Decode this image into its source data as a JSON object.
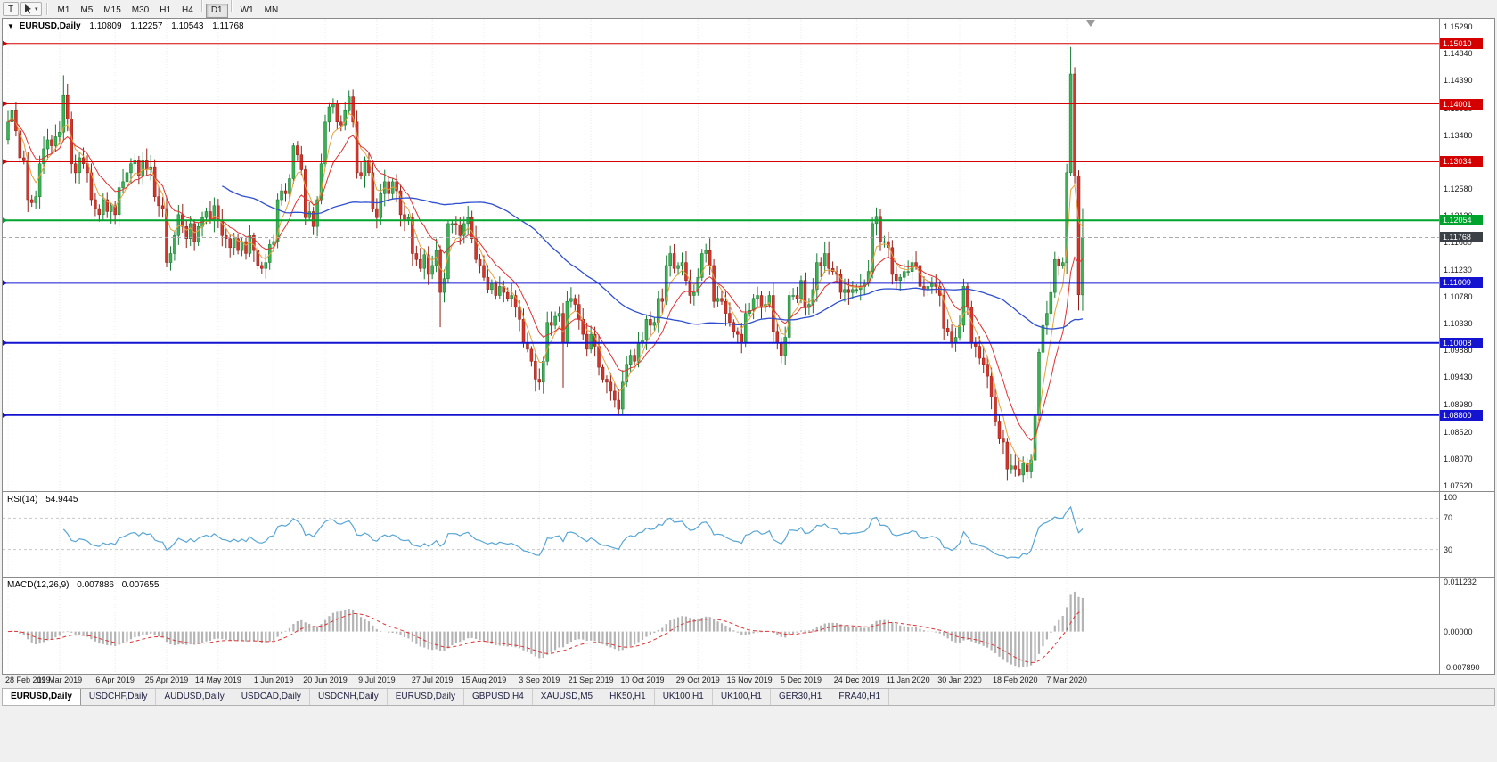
{
  "toolbar": {
    "template_button_label": "T",
    "timeframe_groups": [
      [
        "M1",
        "M5",
        "M15",
        "M30",
        "H1",
        "H4"
      ],
      [
        "D1"
      ],
      [
        "W1",
        "MN"
      ]
    ],
    "active_timeframe": "D1"
  },
  "chart_header": {
    "symbol": "EURUSD,Daily",
    "open": "1.10809",
    "high": "1.12257",
    "low": "1.10543",
    "close": "1.11768"
  },
  "indicators": {
    "rsi": {
      "name": "RSI(14)",
      "value": "54.9445",
      "line_color": "#58a6d6",
      "levels": [
        70,
        30
      ],
      "axis_ticks": [
        {
          "label": "100",
          "value": 100
        },
        {
          "label": "70",
          "value": 70
        },
        {
          "label": "30",
          "value": 30
        }
      ]
    },
    "macd": {
      "name": "MACD(12,26,9)",
      "main_value": "0.007886",
      "signal_value": "0.007655",
      "histogram_color": "#b4b4b4",
      "signal_color": "#dd3333",
      "range": [
        -0.00789,
        0.011232
      ],
      "axis_ticks": [
        {
          "label": "0.011232",
          "value": 0.011232
        },
        {
          "label": "0.00000",
          "value": 0
        },
        {
          "label": "-0.007890",
          "value": -0.00789
        }
      ]
    }
  },
  "tabs": {
    "items": [
      "EURUSD,Daily",
      "USDCHF,Daily",
      "AUDUSD,Daily",
      "USDCAD,Daily",
      "USDCNH,Daily",
      "EURUSD,Daily",
      "GBPUSD,H4",
      "XAUUSD,M5",
      "HK50,H1",
      "UK100,H1",
      "UK100,H1",
      "GER30,H1",
      "FRA40,H1"
    ],
    "active_index": 0
  },
  "chart_data": {
    "type": "candlestick",
    "symbol": "EURUSD",
    "timeframe": "Daily",
    "y_range": [
      1.0762,
      1.1529
    ],
    "price_ticks": [
      "1.15290",
      "1.14840",
      "1.14390",
      "1.13930",
      "1.13480",
      "1.13030",
      "1.12580",
      "1.12130",
      "1.11680",
      "1.11230",
      "1.10780",
      "1.10330",
      "1.09880",
      "1.09430",
      "1.08980",
      "1.08520",
      "1.08070",
      "1.07620"
    ],
    "time_labels": [
      "28 Feb 2019",
      "19 Mar 2019",
      "6 Apr 2019",
      "25 Apr 2019",
      "14 May 2019",
      "1 Jun 2019",
      "20 Jun 2019",
      "9 Jul 2019",
      "27 Jul 2019",
      "15 Aug 2019",
      "3 Sep 2019",
      "21 Sep 2019",
      "10 Oct 2019",
      "29 Oct 2019",
      "16 Nov 2019",
      "5 Dec 2019",
      "24 Dec 2019",
      "11 Jan 2020",
      "30 Jan 2020",
      "18 Feb 2020",
      "7 Mar 2020"
    ],
    "first_open": 1.134,
    "closes": [
      1.137,
      1.139,
      1.1355,
      1.131,
      1.1305,
      1.124,
      1.1235,
      1.1245,
      1.13,
      1.1325,
      1.134,
      1.133,
      1.1345,
      1.1353,
      1.1414,
      1.1375,
      1.13,
      1.1285,
      1.131,
      1.13,
      1.1285,
      1.124,
      1.1225,
      1.1215,
      1.124,
      1.122,
      1.123,
      1.1215,
      1.126,
      1.127,
      1.1285,
      1.13,
      1.1305,
      1.128,
      1.1305,
      1.129,
      1.1295,
      1.1245,
      1.123,
      1.1225,
      1.1135,
      1.115,
      1.118,
      1.1215,
      1.1195,
      1.1175,
      1.12,
      1.117,
      1.1195,
      1.121,
      1.122,
      1.1205,
      1.123,
      1.1205,
      1.118,
      1.1175,
      1.116,
      1.1175,
      1.1155,
      1.117,
      1.115,
      1.118,
      1.1155,
      1.113,
      1.1125,
      1.1135,
      1.1165,
      1.117,
      1.124,
      1.1255,
      1.125,
      1.1275,
      1.133,
      1.1315,
      1.129,
      1.121,
      1.122,
      1.1195,
      1.124,
      1.13,
      1.137,
      1.1395,
      1.14,
      1.137,
      1.1365,
      1.139,
      1.1412,
      1.137,
      1.1285,
      1.128,
      1.1305,
      1.1285,
      1.1225,
      1.121,
      1.125,
      1.127,
      1.125,
      1.127,
      1.1255,
      1.1215,
      1.1205,
      1.121,
      1.115,
      1.114,
      1.1125,
      1.1148,
      1.1115,
      1.113,
      1.1155,
      1.1085,
      1.1108,
      1.12,
      1.12,
      1.1198,
      1.118,
      1.12,
      1.121,
      1.1175,
      1.114,
      1.113,
      1.111,
      1.109,
      1.11,
      1.108,
      1.1095,
      1.1085,
      1.1075,
      1.108,
      1.106,
      1.104,
      1.1,
      1.099,
      1.097,
      1.094,
      1.0935,
      1.097,
      1.1035,
      1.103,
      1.1045,
      1.105,
      1.1,
      1.107,
      1.1075,
      1.1065,
      1.104,
      1.1015,
      1.099,
      1.1015,
      1.0995,
      1.096,
      1.094,
      1.0935,
      1.092,
      1.0905,
      1.089,
      1.0935,
      1.0965,
      1.098,
      1.097,
      1.1,
      1.1005,
      1.104,
      1.103,
      1.1035,
      1.1075,
      1.107,
      1.113,
      1.115,
      1.1125,
      1.113,
      1.1135,
      1.1105,
      1.108,
      1.1085,
      1.111,
      1.115,
      1.1155,
      1.113,
      1.107,
      1.1075,
      1.107,
      1.105,
      1.1035,
      1.102,
      1.1015,
      1.1,
      1.105,
      1.1055,
      1.1075,
      1.108,
      1.106,
      1.1065,
      1.108,
      1.102,
      1.1,
      1.098,
      1.101,
      1.108,
      1.108,
      1.1075,
      1.1105,
      1.106,
      1.1065,
      1.109,
      1.1135,
      1.113,
      1.115,
      1.1125,
      1.112,
      1.1115,
      1.1085,
      1.109,
      1.1085,
      1.109,
      1.109,
      1.1095,
      1.11,
      1.112,
      1.12,
      1.1212,
      1.117,
      1.117,
      1.116,
      1.1115,
      1.1105,
      1.111,
      1.112,
      1.112,
      1.1135,
      1.113,
      1.1095,
      1.109,
      1.1095,
      1.11,
      1.1095,
      1.108,
      1.1025,
      1.102,
      1.1,
      1.101,
      1.103,
      1.1095,
      1.106,
      1.1,
      1.0995,
      1.0975,
      1.0965,
      1.0945,
      1.091,
      1.087,
      1.084,
      1.0835,
      1.079,
      1.0795,
      1.079,
      1.078,
      1.08,
      1.0785,
      1.0805,
      1.088,
      1.0985,
      1.103,
      1.105,
      1.1085,
      1.114,
      1.113,
      1.1135,
      1.1285,
      1.145,
      1.128,
      1.1081,
      1.11768
    ],
    "wick_overrides": {
      "14": {
        "high": 1.1448
      },
      "109": {
        "low": 1.1027
      },
      "140": {
        "low": 1.0926
      },
      "154": {
        "low": 1.0879
      },
      "255": {
        "low": 1.0778
      },
      "268": {
        "high": 1.1495
      },
      "270": {
        "low": 1.1055
      }
    },
    "last_candle": {
      "open": 1.10809,
      "high": 1.12257,
      "low": 1.10543,
      "close": 1.11768
    },
    "levels": [
      {
        "value": 1.1501,
        "label": "1.15010",
        "color": "#d40000",
        "width": 1
      },
      {
        "value": 1.14001,
        "label": "1.14001",
        "color": "#d40000",
        "width": 1
      },
      {
        "value": 1.13034,
        "label": "1.13034",
        "color": "#d40000",
        "width": 1
      },
      {
        "value": 1.12054,
        "label": "1.12054",
        "color": "#00a32c",
        "width": 2
      },
      {
        "value": 1.11009,
        "label": "1.11009",
        "color": "#1414d0",
        "width": 2
      },
      {
        "value": 1.10008,
        "label": "1.10008",
        "color": "#1414d0",
        "width": 2
      },
      {
        "value": 1.088,
        "label": "1.08800",
        "color": "#1414d0",
        "width": 2
      }
    ],
    "current_price": {
      "value": 1.11768,
      "label": "1.11768",
      "line_color": "#aaaaaa",
      "badge_color": "#3b4046"
    },
    "moving_averages": [
      {
        "period": 5,
        "type": "ema",
        "color": "#e6a23c",
        "width": 1
      },
      {
        "period": 12,
        "type": "ema",
        "color": "#e03232",
        "width": 1
      },
      {
        "period": 55,
        "type": "sma",
        "color": "#2f4fd0",
        "width": 1.3
      }
    ],
    "up_color": "#3cb053",
    "up_stroke": "#157a32",
    "down_color": "#d2352b",
    "down_stroke": "#8f1f16"
  }
}
